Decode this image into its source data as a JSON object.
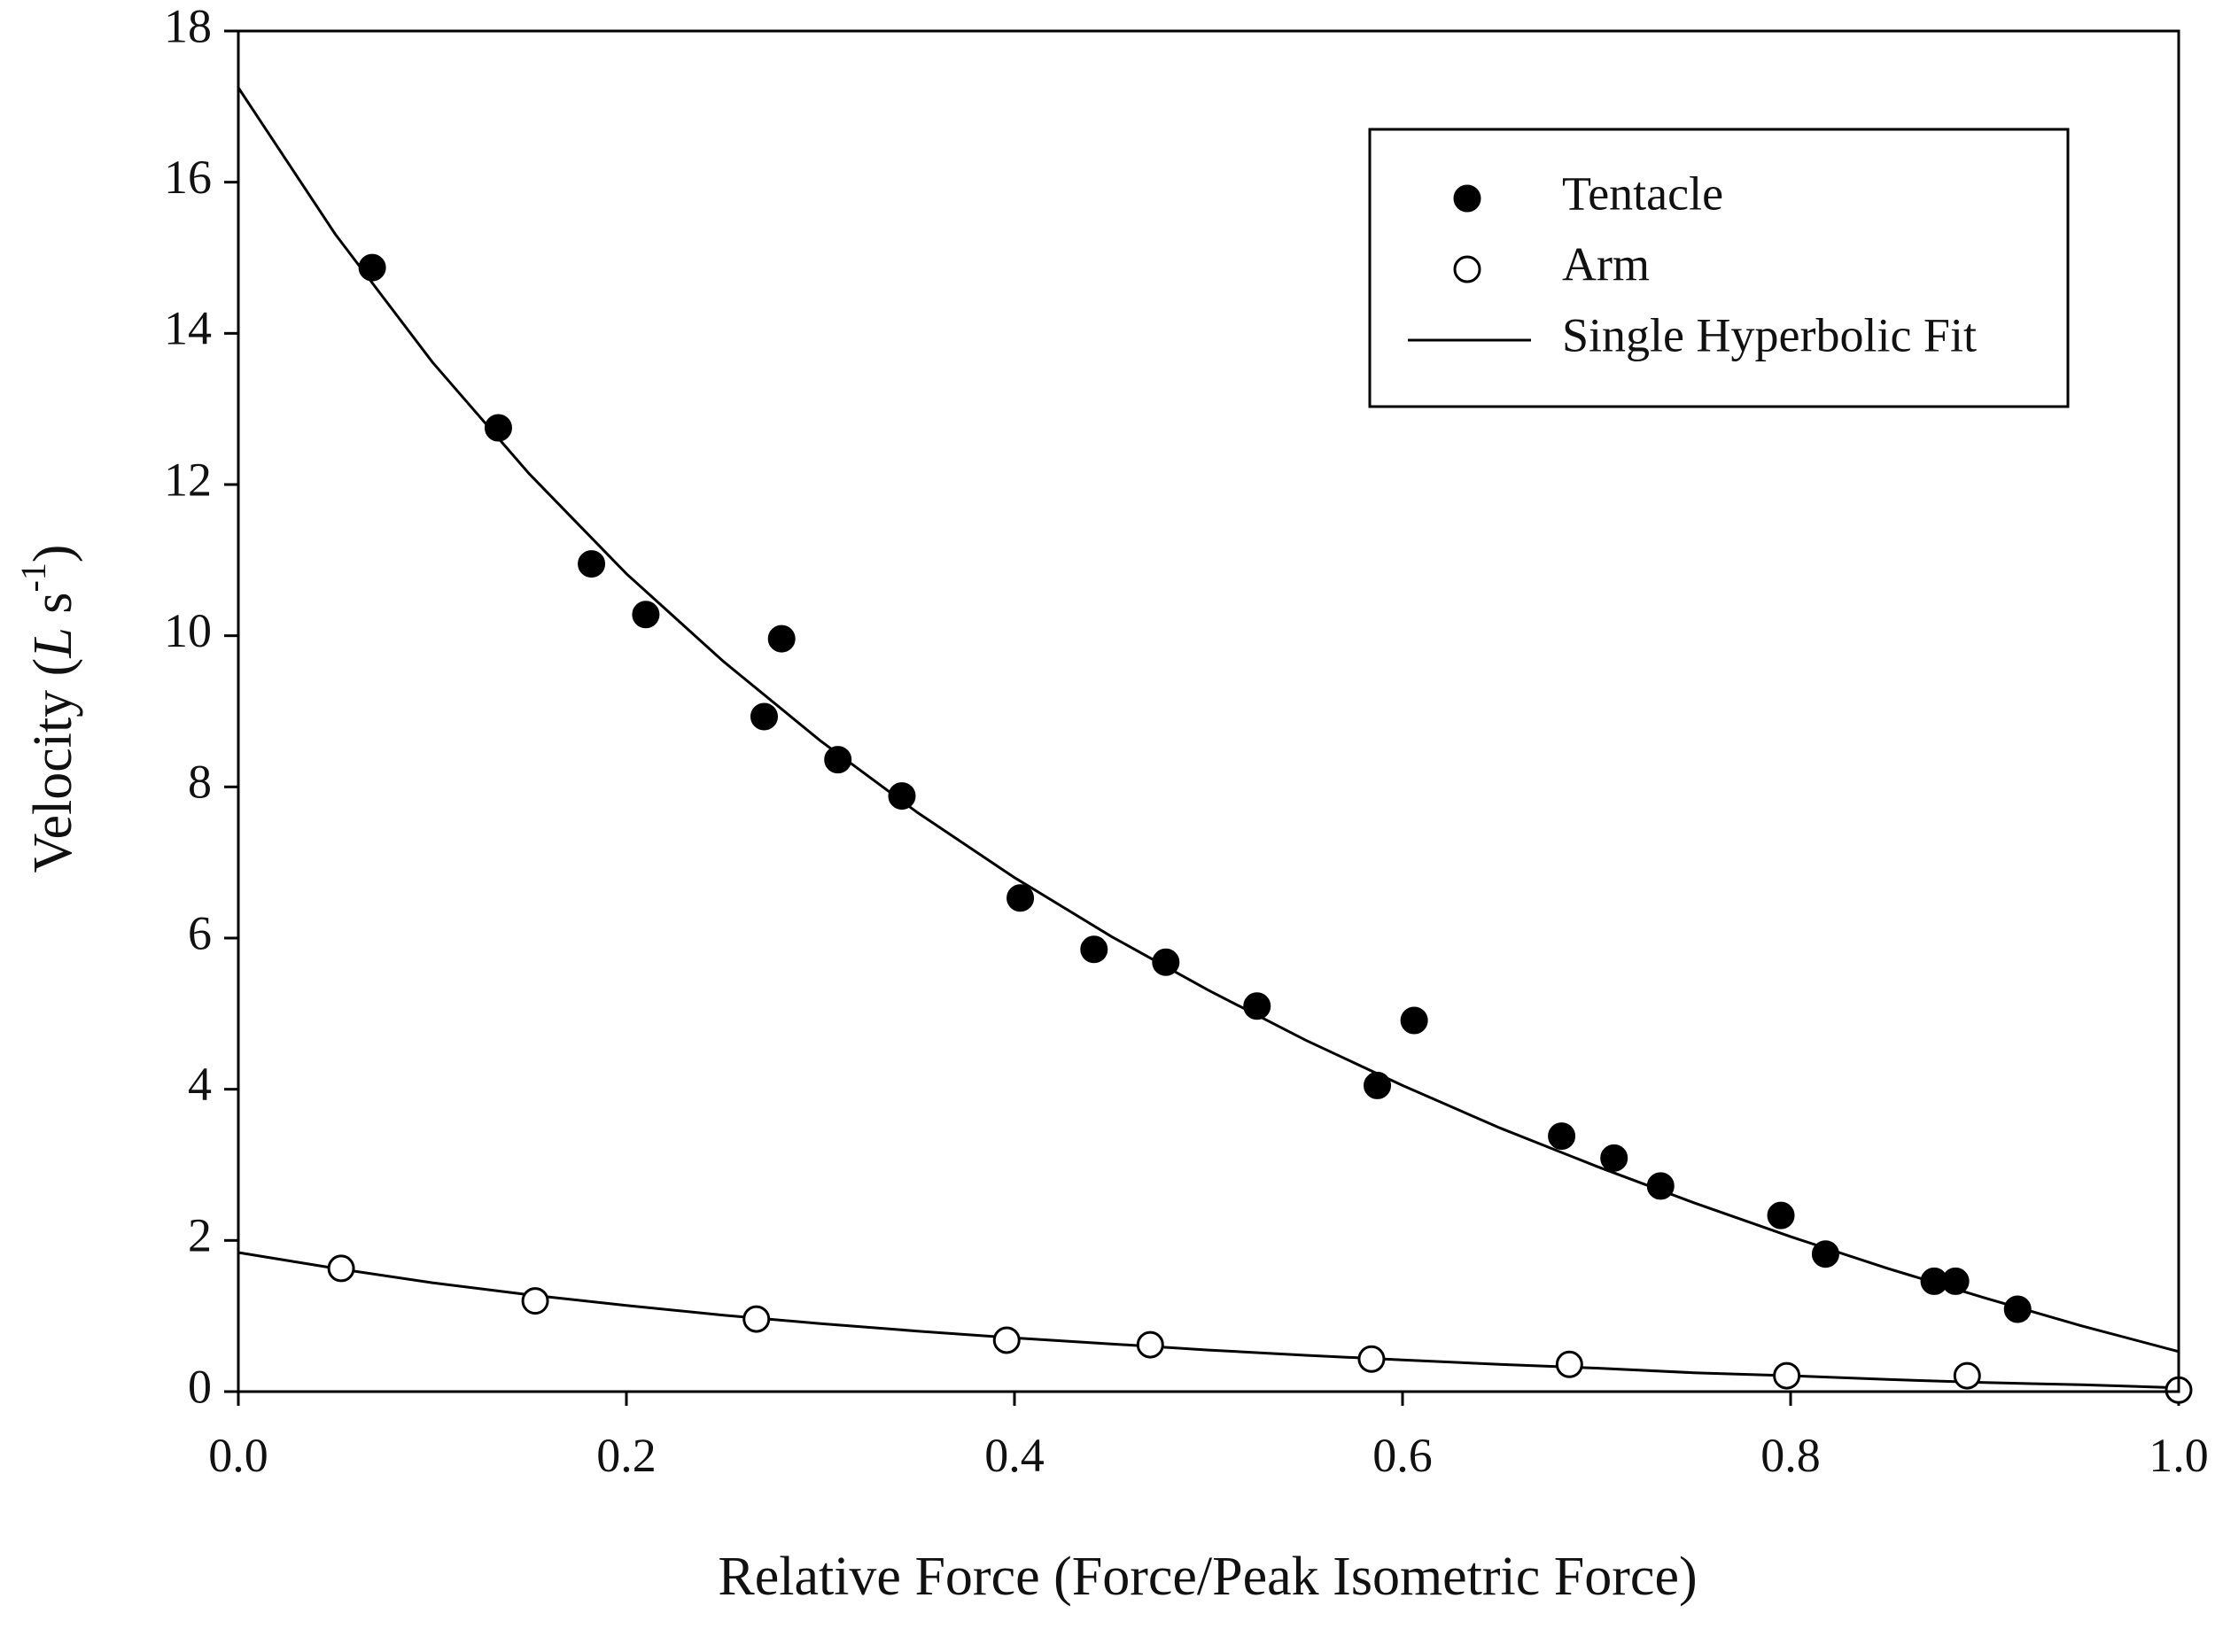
{
  "chart_data": {
    "type": "scatter",
    "xlabel": "Relative Force (Force/Peak Isometric Force)",
    "ylabel": {
      "prefix": "Velocity (",
      "italic": "L",
      "unit": " s",
      "superscript": "-1",
      "suffix": ")"
    },
    "xlim": [
      0,
      1
    ],
    "ylim": [
      0,
      18
    ],
    "xticks": [
      {
        "value": 0,
        "label": "0.0"
      },
      {
        "value": 0.2,
        "label": "0.2"
      },
      {
        "value": 0.4,
        "label": "0.4"
      },
      {
        "value": 0.6,
        "label": "0.6"
      },
      {
        "value": 0.8,
        "label": "0.8"
      },
      {
        "value": 1,
        "label": "1.0"
      }
    ],
    "yticks": [
      0,
      2,
      4,
      6,
      8,
      10,
      12,
      14,
      16,
      18
    ],
    "legend": "upper right",
    "series": [
      {
        "name": "Tentacle",
        "color": "#000000",
        "fill": "#000000",
        "x": [
          0.069,
          0.134,
          0.182,
          0.21,
          0.28,
          0.271,
          0.309,
          0.342,
          0.403,
          0.441,
          0.478,
          0.525,
          0.606,
          0.587,
          0.682,
          0.709,
          0.733,
          0.795,
          0.818,
          0.874,
          0.885,
          0.917
        ],
        "values": [
          14.87,
          12.75,
          10.95,
          10.28,
          9.96,
          8.93,
          8.36,
          7.88,
          6.53,
          5.85,
          5.68,
          5.1,
          4.91,
          4.05,
          3.38,
          3.09,
          2.72,
          2.33,
          1.82,
          1.46,
          1.46,
          1.09
        ]
      },
      {
        "name": "Arm",
        "color": "#000000",
        "fill": "#ffffff",
        "x": [
          0.053,
          0.153,
          0.267,
          0.396,
          0.47,
          0.584,
          0.686,
          0.798,
          0.891,
          1.0
        ],
        "values": [
          1.63,
          1.2,
          0.96,
          0.68,
          0.62,
          0.43,
          0.36,
          0.21,
          0.21,
          0.02
        ]
      }
    ],
    "fit": {
      "name": "Single Hyperbolic Fit",
      "color": "#000000",
      "x": [
        0,
        0.05,
        0.1,
        0.15,
        0.2,
        0.25,
        0.3,
        0.35,
        0.4,
        0.45,
        0.5,
        0.55,
        0.6,
        0.65,
        0.7,
        0.75,
        0.8,
        0.85,
        0.9,
        0.95,
        1.0
      ],
      "curves": [
        [
          17.25,
          15.31,
          13.62,
          12.14,
          10.82,
          9.66,
          8.61,
          7.66,
          6.8,
          6.02,
          5.31,
          4.65,
          4.05,
          3.49,
          2.98,
          2.5,
          2.05,
          1.63,
          1.24,
          0.87,
          0.53
        ],
        [
          1.84,
          1.63,
          1.44,
          1.28,
          1.14,
          1.01,
          0.9,
          0.8,
          0.71,
          0.63,
          0.55,
          0.48,
          0.42,
          0.36,
          0.31,
          0.25,
          0.21,
          0.16,
          0.12,
          0.09,
          0.05
        ]
      ]
    }
  }
}
